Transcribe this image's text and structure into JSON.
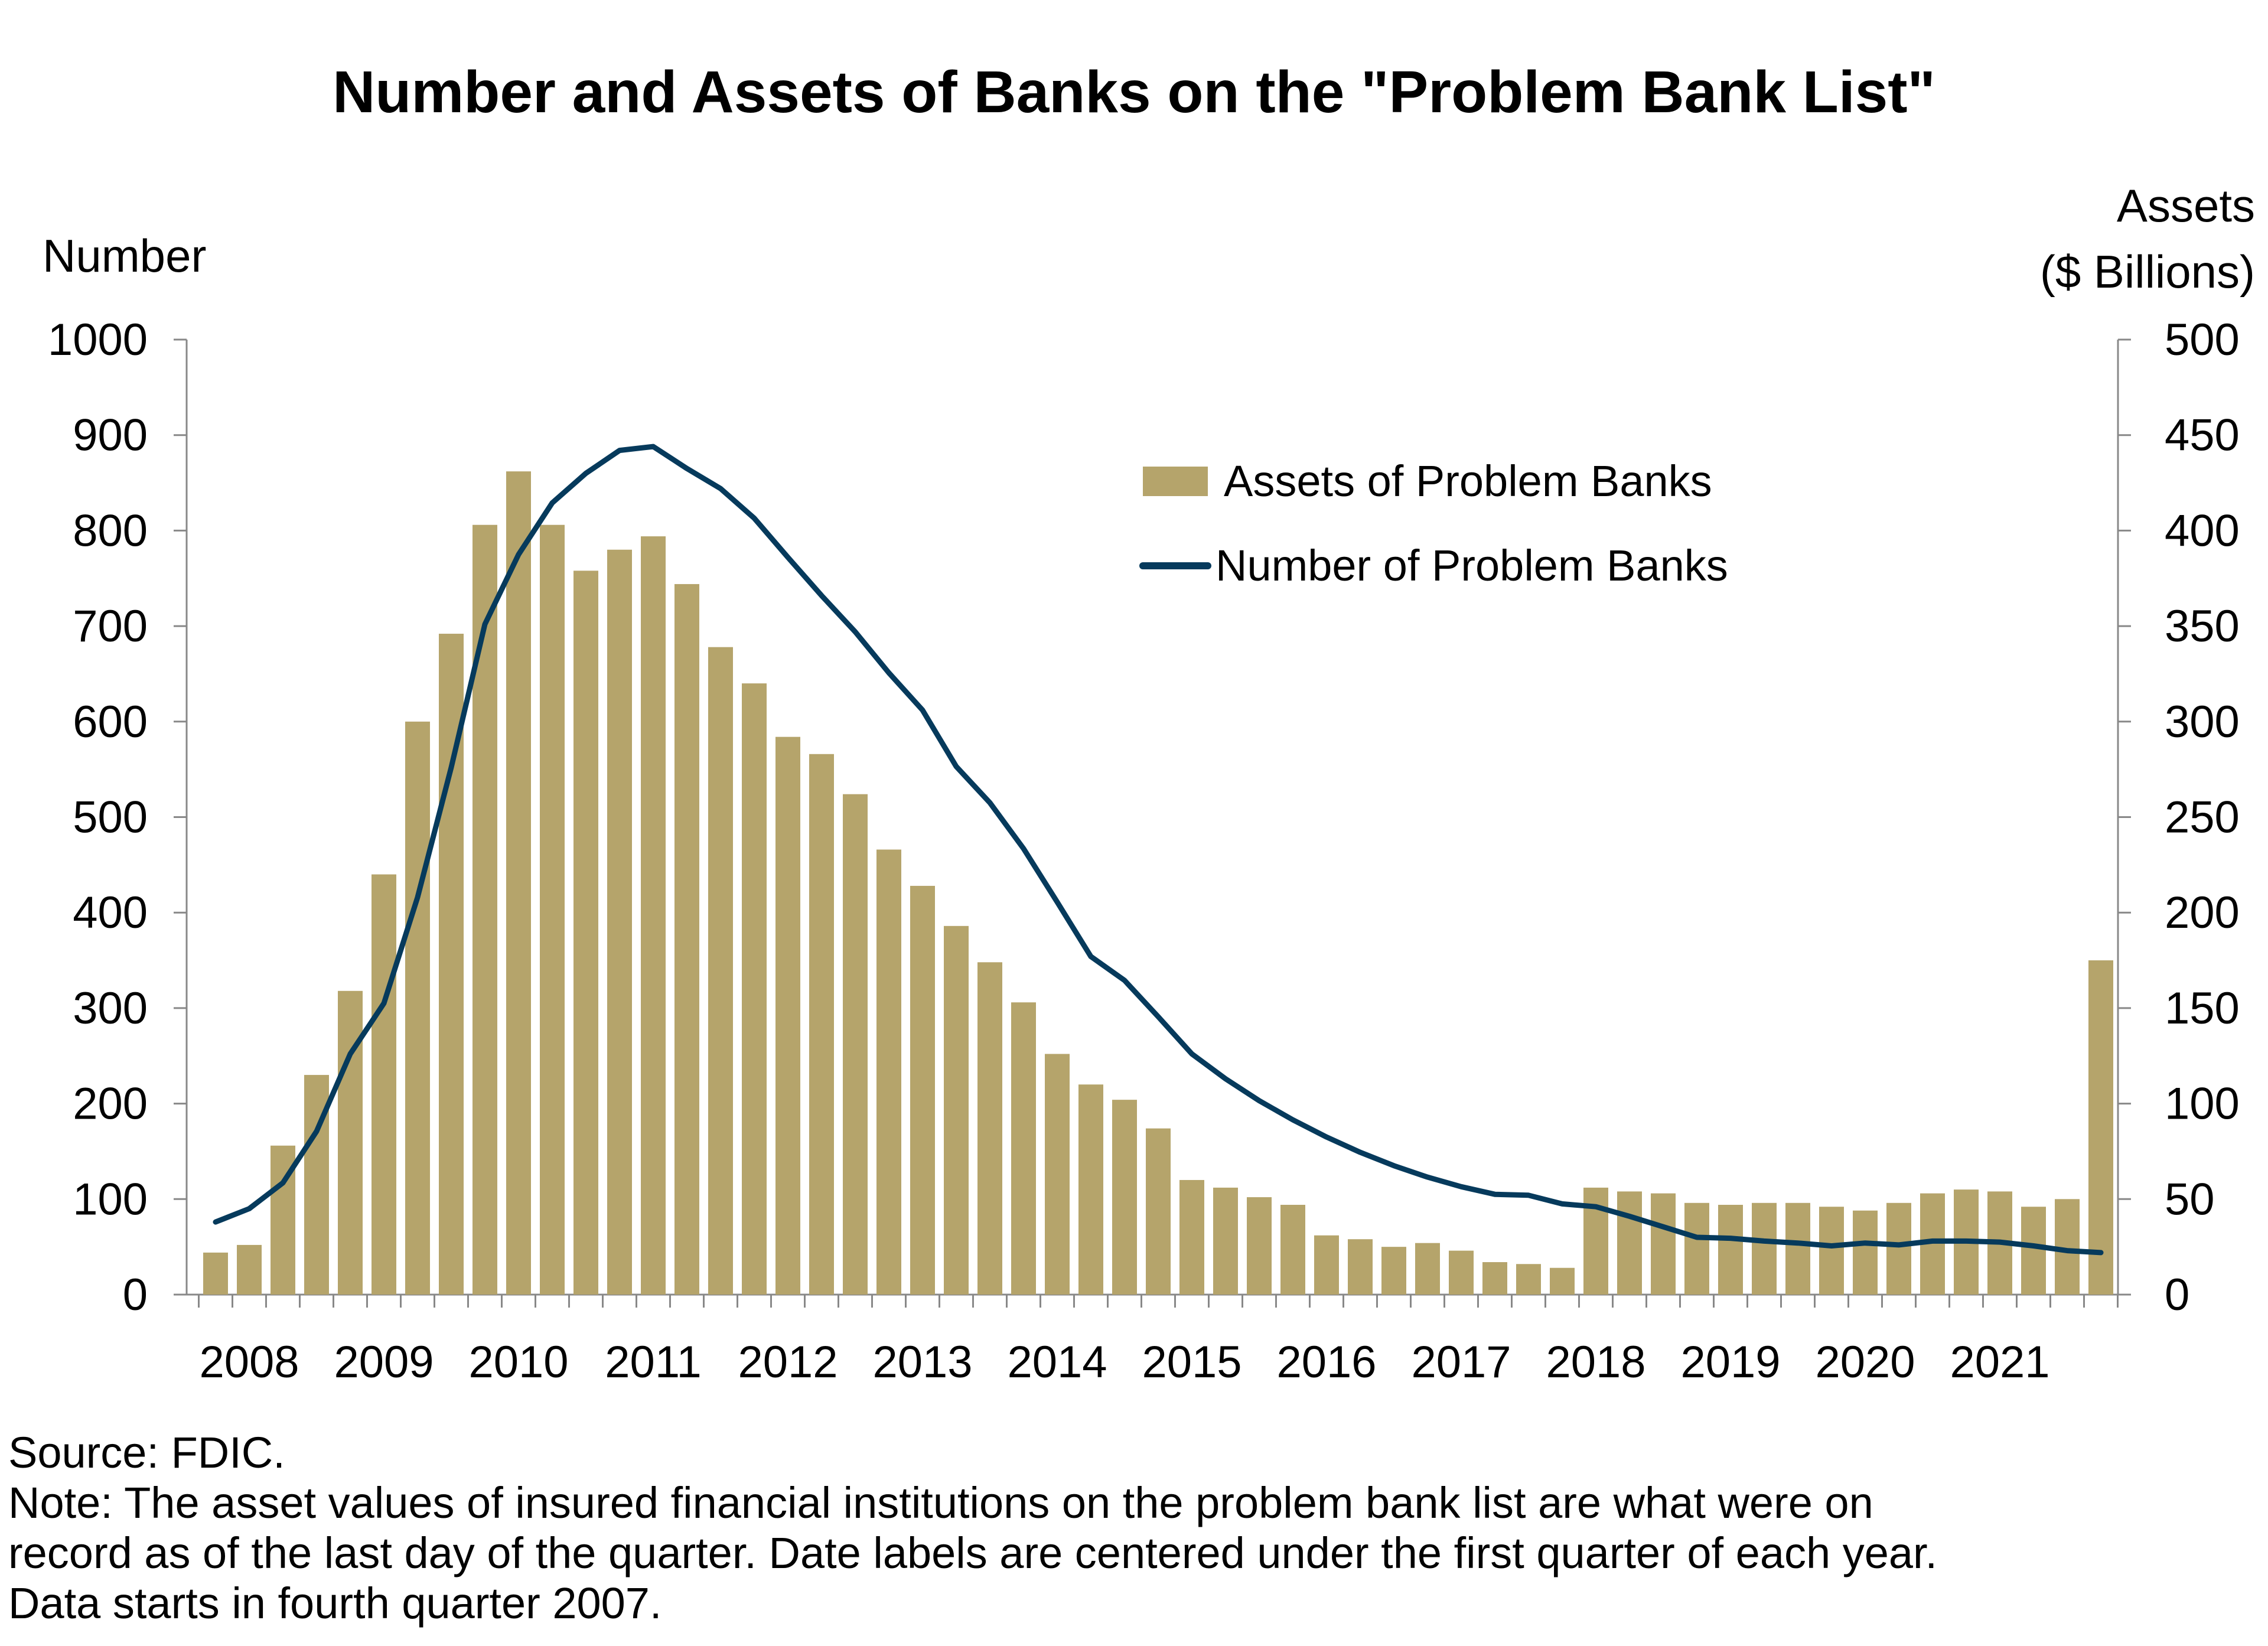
{
  "chart_data": {
    "type": "bar+line",
    "title": "Number and Assets of Banks on the \"Problem Bank List\"",
    "ylabel_left": "Number",
    "ylabel_right_line1": "Assets",
    "ylabel_right_line2": "($ Billions)",
    "ylim_left": [
      0,
      1000
    ],
    "ylim_right": [
      0,
      500
    ],
    "yticks_left": [
      "0",
      "100",
      "200",
      "300",
      "400",
      "500",
      "600",
      "700",
      "800",
      "900",
      "1000"
    ],
    "yticks_right": [
      "0",
      "50",
      "100",
      "150",
      "200",
      "250",
      "300",
      "350",
      "400",
      "450",
      "500"
    ],
    "x_start": "2007 Q4",
    "year_labels": [
      "2008",
      "2009",
      "2010",
      "2011",
      "2012",
      "2013",
      "2014",
      "2015",
      "2016",
      "2017",
      "2018",
      "2019",
      "2020",
      "2021"
    ],
    "legend_position": "top-right",
    "grid": false,
    "series": [
      {
        "name": "Assets of Problem Banks",
        "type": "bar",
        "axis": "right",
        "color": "#B5A46B",
        "values": [
          22,
          26,
          78,
          115,
          159,
          220,
          300,
          346,
          403,
          431,
          403,
          379,
          390,
          397,
          372,
          339,
          320,
          292,
          283,
          262,
          233,
          214,
          193,
          174,
          153,
          126,
          110,
          102,
          87,
          60,
          56,
          51,
          47,
          31,
          29,
          25,
          27,
          23,
          17,
          16,
          14,
          56,
          54,
          53,
          48,
          47,
          48,
          48,
          46,
          44,
          48,
          53,
          55,
          54,
          46,
          50,
          175
        ]
      },
      {
        "name": "Number of Problem Banks",
        "type": "line",
        "axis": "left",
        "color": "#063A5C",
        "values": [
          76,
          90,
          117,
          171,
          252,
          305,
          416,
          552,
          702,
          775,
          829,
          860,
          884,
          888,
          865,
          844,
          813,
          772,
          732,
          694,
          651,
          612,
          553,
          515,
          467,
          411,
          354,
          329,
          291,
          252,
          226,
          203,
          183,
          165,
          149,
          135,
          123,
          113,
          105,
          104,
          95,
          92,
          82,
          71,
          60,
          59,
          56,
          54,
          51,
          54,
          52,
          56,
          56,
          55,
          51,
          46,
          44
        ]
      }
    ]
  },
  "footer": {
    "source": "Source: FDIC.",
    "note_lines": [
      "Note: The asset values of insured financial institutions on the problem bank list are what were on",
      "record as of the last day of the quarter. Date labels are centered under the first quarter of each year.",
      "Data starts in fourth quarter 2007."
    ]
  }
}
